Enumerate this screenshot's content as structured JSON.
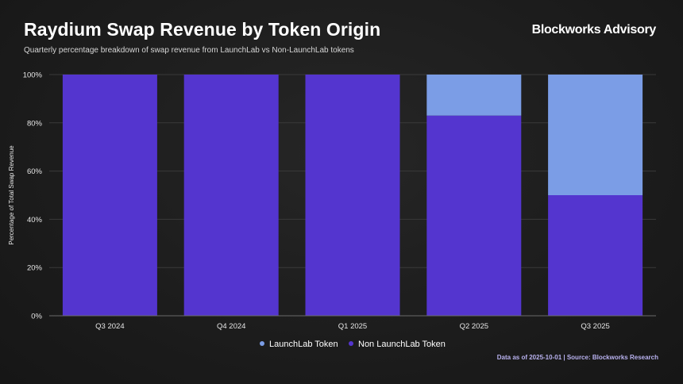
{
  "header": {
    "title": "Raydium Swap Revenue by Token Origin",
    "subtitle": "Quarterly percentage breakdown of swap revenue from LaunchLab vs Non-LaunchLab tokens",
    "brand": "Blockworks Advisory"
  },
  "footer": {
    "source": "Data as of 2025-10-01 | Source: Blockworks Research"
  },
  "colors": {
    "launchlab": "#7b9de6",
    "non_launchlab": "#5435cf",
    "grid": "#3a3a3a",
    "axis": "#6a6a6a"
  },
  "chart_data": {
    "type": "bar",
    "stacked": true,
    "categories": [
      "Q3 2024",
      "Q4 2024",
      "Q1 2025",
      "Q2 2025",
      "Q3 2025"
    ],
    "series": [
      {
        "name": "Non LaunchLab Token",
        "values": [
          100,
          100,
          100,
          83,
          50
        ]
      },
      {
        "name": "LaunchLab Token",
        "values": [
          0,
          0,
          0,
          17,
          50
        ]
      }
    ],
    "ylabel": "Percentage of Total Swap Revenue",
    "xlabel": "",
    "ylim": [
      0,
      100
    ],
    "yticks": [
      0,
      20,
      40,
      60,
      80,
      100
    ],
    "ytick_labels": [
      "0%",
      "20%",
      "40%",
      "60%",
      "80%",
      "100%"
    ],
    "legend": {
      "position": "bottom-center",
      "entries": [
        "LaunchLab Token",
        "Non LaunchLab Token"
      ]
    },
    "grid": true
  }
}
